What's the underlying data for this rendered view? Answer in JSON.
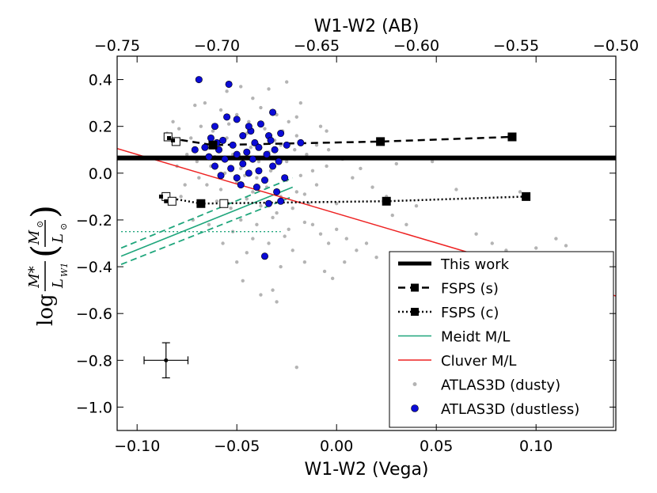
{
  "chart_data": {
    "type": "scatter",
    "top_axis": {
      "label": "W1-W2 (AB)",
      "lim": [
        -0.75,
        -0.5
      ],
      "ticks": [
        -0.75,
        -0.7,
        -0.65,
        -0.6,
        -0.55,
        -0.5
      ],
      "tick_labels": [
        "−0.75",
        "−0.70",
        "−0.65",
        "−0.60",
        "−0.55",
        "−0.50"
      ]
    },
    "x_axis": {
      "label": "W1-W2 (Vega)",
      "lim": [
        -0.11,
        0.14
      ],
      "ticks": [
        -0.1,
        -0.05,
        0.0,
        0.05,
        0.1
      ],
      "tick_labels": [
        "−0.10",
        "−0.05",
        "0.00",
        "0.05",
        "0.10"
      ]
    },
    "y_axis": {
      "label_prefix": "log",
      "label_fraction_num": "M*",
      "label_fraction_den": "L",
      "label_fraction_den_sub": "W1",
      "label_paren_num": "M",
      "label_paren_den": "L",
      "label_paren_sub": "⊙",
      "lim": [
        -1.1,
        0.5
      ],
      "ticks": [
        0.4,
        0.2,
        0.0,
        -0.2,
        -0.4,
        -0.6,
        -0.8,
        -1.0
      ],
      "tick_labels": [
        "0.4",
        "0.2",
        "0.0",
        "−0.2",
        "−0.4",
        "−0.6",
        "−0.8",
        "−1.0"
      ]
    },
    "colors": {
      "this_work": "#000000",
      "fsps": "#000000",
      "meidt": "#1fa67c",
      "cluver": "#ee2222",
      "dusty": "#b4b4b4",
      "dustless": "#0b0bd6"
    },
    "series": [
      {
        "name": "This work",
        "type": "hline",
        "y": 0.065
      },
      {
        "name": "FSPS (s)",
        "type": "line",
        "x": [
          -0.062,
          0.022,
          0.088
        ],
        "y": [
          0.12,
          0.135,
          0.155
        ]
      },
      {
        "name": "FSPS (c)",
        "type": "line",
        "x": [
          -0.068,
          0.025,
          0.095
        ],
        "y": [
          -0.13,
          -0.12,
          -0.1
        ]
      },
      {
        "name": "Cluver M/L",
        "type": "line",
        "x": [
          -0.11,
          0.14
        ],
        "y": [
          0.105,
          -0.525
        ]
      },
      {
        "name": "Meidt M/L",
        "type": "line",
        "x": [
          -0.108,
          -0.022
        ],
        "y": [
          -0.355,
          -0.06
        ]
      }
    ],
    "fsps_s_small": {
      "x": [
        -0.084,
        -0.082
      ],
      "y": [
        0.15,
        0.14
      ]
    },
    "fsps_c_small": {
      "x": [
        -0.088,
        -0.0855
      ],
      "y": [
        -0.1,
        -0.12
      ]
    },
    "fsps_s_open": {
      "x": [
        -0.0845,
        -0.0805
      ],
      "y": [
        0.155,
        0.135
      ]
    },
    "fsps_c_open": {
      "x": [
        -0.0855,
        -0.0825,
        -0.0565
      ],
      "y": [
        -0.1,
        -0.12,
        -0.13
      ]
    },
    "meidt_band": {
      "x": [
        -0.108,
        -0.022
      ],
      "upper": [
        -0.32,
        -0.02
      ],
      "lower": [
        -0.39,
        -0.1
      ]
    },
    "meidt_flat": {
      "x": [
        -0.108,
        -0.028
      ],
      "y": -0.25
    },
    "errorbar": {
      "x": -0.0855,
      "y": -0.8,
      "xerr": 0.011,
      "yerr": 0.075
    },
    "dusty_points": [
      [
        -0.055,
        0.35
      ],
      [
        -0.048,
        0.37
      ],
      [
        -0.034,
        0.36
      ],
      [
        -0.025,
        0.39
      ],
      [
        -0.066,
        0.3
      ],
      [
        -0.071,
        0.29
      ],
      [
        -0.042,
        0.32
      ],
      [
        -0.058,
        0.27
      ],
      [
        -0.05,
        0.25
      ],
      [
        -0.038,
        0.28
      ],
      [
        -0.044,
        0.22
      ],
      [
        -0.03,
        0.25
      ],
      [
        -0.024,
        0.22
      ],
      [
        -0.068,
        0.2
      ],
      [
        -0.062,
        0.18
      ],
      [
        -0.055,
        0.15
      ],
      [
        -0.045,
        0.17
      ],
      [
        -0.036,
        0.19
      ],
      [
        -0.027,
        0.18
      ],
      [
        -0.02,
        0.16
      ],
      [
        -0.073,
        0.15
      ],
      [
        -0.066,
        0.12
      ],
      [
        -0.059,
        0.1
      ],
      [
        -0.052,
        0.08
      ],
      [
        -0.043,
        0.11
      ],
      [
        -0.034,
        0.09
      ],
      [
        -0.028,
        0.12
      ],
      [
        -0.021,
        0.1
      ],
      [
        -0.015,
        0.08
      ],
      [
        -0.07,
        0.05
      ],
      [
        -0.063,
        0.03
      ],
      [
        -0.056,
        0.0
      ],
      [
        -0.048,
        0.02
      ],
      [
        -0.04,
        -0.02
      ],
      [
        -0.033,
        0.01
      ],
      [
        -0.025,
        -0.03
      ],
      [
        -0.018,
        -0.01
      ],
      [
        -0.065,
        -0.05
      ],
      [
        -0.058,
        -0.07
      ],
      [
        -0.05,
        -0.04
      ],
      [
        -0.042,
        -0.08
      ],
      [
        -0.035,
        -0.06
      ],
      [
        -0.028,
        -0.1
      ],
      [
        -0.02,
        -0.08
      ],
      [
        -0.06,
        -0.12
      ],
      [
        -0.053,
        -0.15
      ],
      [
        -0.045,
        -0.11
      ],
      [
        -0.038,
        -0.14
      ],
      [
        -0.03,
        -0.17
      ],
      [
        -0.022,
        -0.15
      ],
      [
        -0.014,
        -0.13
      ],
      [
        -0.048,
        -0.2
      ],
      [
        -0.04,
        -0.22
      ],
      [
        -0.032,
        -0.19
      ],
      [
        -0.024,
        -0.24
      ],
      [
        -0.016,
        -0.21
      ],
      [
        -0.042,
        -0.28
      ],
      [
        -0.034,
        -0.3
      ],
      [
        -0.026,
        -0.27
      ],
      [
        -0.036,
        -0.36
      ],
      [
        -0.028,
        -0.4
      ],
      [
        -0.045,
        -0.34
      ],
      [
        -0.038,
        -0.52
      ],
      [
        -0.032,
        -0.5
      ],
      [
        -0.03,
        -0.55
      ],
      [
        -0.012,
        -0.22
      ],
      [
        -0.008,
        -0.26
      ],
      [
        -0.004,
        -0.3
      ],
      [
        0.0,
        -0.24
      ],
      [
        0.005,
        -0.28
      ],
      [
        0.01,
        -0.33
      ],
      [
        0.015,
        -0.3
      ],
      [
        0.02,
        -0.36
      ],
      [
        -0.006,
        -0.42
      ],
      [
        -0.002,
        -0.45
      ],
      [
        0.004,
        -0.38
      ],
      [
        -0.01,
        -0.05
      ],
      [
        -0.005,
        0.03
      ],
      [
        0.003,
        0.06
      ],
      [
        0.008,
        -0.02
      ],
      [
        0.012,
        0.02
      ],
      [
        0.018,
        -0.06
      ],
      [
        0.025,
        -0.1
      ],
      [
        0.028,
        -0.18
      ],
      [
        0.035,
        -0.22
      ],
      [
        0.04,
        -0.14
      ],
      [
        0.048,
        0.05
      ],
      [
        0.06,
        -0.07
      ],
      [
        0.07,
        -0.26
      ],
      [
        0.078,
        -0.3
      ],
      [
        0.085,
        -0.33
      ],
      [
        0.092,
        -0.08
      ],
      [
        0.1,
        -0.32
      ],
      [
        0.11,
        -0.28
      ],
      [
        0.115,
        -0.31
      ],
      [
        -0.01,
        0.12
      ],
      [
        -0.008,
        0.2
      ],
      [
        -0.005,
        0.18
      ],
      [
        -0.02,
        0.24
      ],
      [
        -0.018,
        0.3
      ],
      [
        -0.075,
        0.08
      ],
      [
        -0.08,
        0.03
      ],
      [
        -0.078,
        -0.1
      ],
      [
        -0.076,
        -0.05
      ],
      [
        -0.072,
        -0.2
      ],
      [
        -0.064,
        -0.22
      ],
      [
        -0.057,
        -0.3
      ],
      [
        -0.052,
        -0.25
      ],
      [
        -0.05,
        -0.38
      ],
      [
        -0.047,
        -0.46
      ],
      [
        -0.016,
        -0.38
      ],
      [
        -0.022,
        -0.33
      ],
      [
        -0.025,
        0.05
      ],
      [
        -0.031,
        0.14
      ],
      [
        -0.039,
        0.05
      ],
      [
        -0.046,
        -0.01
      ],
      [
        -0.054,
        0.21
      ],
      [
        -0.061,
        0.07
      ],
      [
        -0.069,
        -0.02
      ],
      [
        -0.012,
        0.01
      ],
      [
        -0.016,
        -0.09
      ],
      [
        0.0,
        -0.13
      ],
      [
        -0.02,
        -0.83
      ],
      [
        -0.004,
        0.1
      ],
      [
        0.03,
        0.04
      ],
      [
        -0.082,
        0.22
      ],
      [
        -0.079,
        0.19
      ],
      [
        -0.085,
        0.17
      ]
    ],
    "dustless_points": [
      [
        -0.069,
        0.4
      ],
      [
        -0.054,
        0.38
      ],
      [
        -0.032,
        0.26
      ],
      [
        -0.061,
        0.2
      ],
      [
        -0.05,
        0.23
      ],
      [
        -0.043,
        0.18
      ],
      [
        -0.038,
        0.21
      ],
      [
        -0.063,
        0.15
      ],
      [
        -0.057,
        0.14
      ],
      [
        -0.047,
        0.16
      ],
      [
        -0.041,
        0.13
      ],
      [
        -0.034,
        0.16
      ],
      [
        -0.028,
        0.17
      ],
      [
        -0.066,
        0.11
      ],
      [
        -0.059,
        0.1
      ],
      [
        -0.052,
        0.12
      ],
      [
        -0.045,
        0.09
      ],
      [
        -0.039,
        0.11
      ],
      [
        -0.031,
        0.1
      ],
      [
        -0.025,
        0.12
      ],
      [
        -0.018,
        0.13
      ],
      [
        -0.071,
        0.1
      ],
      [
        -0.064,
        0.07
      ],
      [
        -0.056,
        0.06
      ],
      [
        -0.05,
        0.08
      ],
      [
        -0.042,
        0.06
      ],
      [
        -0.035,
        0.08
      ],
      [
        -0.029,
        0.05
      ],
      [
        -0.061,
        0.03
      ],
      [
        -0.053,
        0.02
      ],
      [
        -0.047,
        0.04
      ],
      [
        -0.039,
        0.01
      ],
      [
        -0.032,
        0.03
      ],
      [
        -0.058,
        -0.01
      ],
      [
        -0.05,
        -0.02
      ],
      [
        -0.044,
        0.0
      ],
      [
        -0.036,
        -0.03
      ],
      [
        -0.026,
        -0.02
      ],
      [
        -0.048,
        -0.05
      ],
      [
        -0.04,
        -0.06
      ],
      [
        -0.03,
        -0.08
      ],
      [
        -0.034,
        -0.13
      ],
      [
        -0.028,
        -0.12
      ],
      [
        -0.036,
        -0.355
      ],
      [
        -0.055,
        0.24
      ],
      [
        -0.044,
        0.2
      ],
      [
        -0.06,
        0.13
      ],
      [
        -0.033,
        0.14
      ]
    ],
    "legend": [
      {
        "label": "This work"
      },
      {
        "label": "FSPS (s)"
      },
      {
        "label": "FSPS (c)"
      },
      {
        "label": "Meidt M/L"
      },
      {
        "label": "Cluver M/L"
      },
      {
        "label": "ATLAS3D (dusty)"
      },
      {
        "label": "ATLAS3D (dustless)"
      }
    ]
  }
}
